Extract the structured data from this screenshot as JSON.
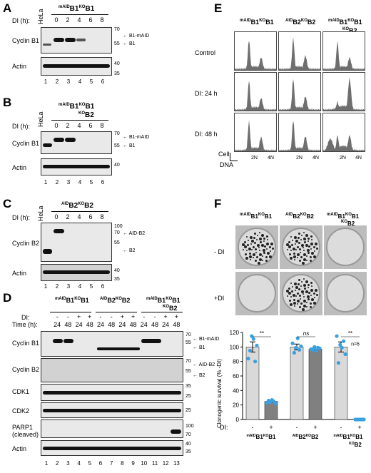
{
  "panels": {
    "A": {
      "letter": "A",
      "hela": "HeLa",
      "title_sup": "mAID",
      "title_main": "B1",
      "title_sup2": "KO",
      "title_main2": "B1",
      "di_label": "DI (h):",
      "di_values": [
        "0",
        "2",
        "4",
        "6",
        "8"
      ],
      "row1": "Cyclin B1",
      "row2": "Actin",
      "m1": "70",
      "m2": "55",
      "m3": "40",
      "m4": "35",
      "arrow1": "B1-mAID",
      "arrow2": "B1",
      "lanes": [
        "1",
        "2",
        "3",
        "4",
        "5",
        "6"
      ]
    },
    "B": {
      "letter": "B",
      "hela": "HeLa",
      "title_a": "mAID",
      "title_b": "B1",
      "title_c": "KO",
      "title_d": "B1",
      "title_e": "KO",
      "title_f": "B2",
      "di_label": "DI (h):",
      "di_values": [
        "0",
        "2",
        "4",
        "6",
        "8"
      ],
      "row1": "Cyclin B1",
      "row2": "Actin",
      "m1": "70",
      "m2": "55",
      "m3": "40",
      "arrow1": "B1-mAID",
      "arrow2": "B1",
      "lanes": [
        "1",
        "2",
        "3",
        "4",
        "5",
        "6"
      ]
    },
    "C": {
      "letter": "C",
      "hela": "HeLa",
      "title_a": "AID",
      "title_b": "B2",
      "title_c": "KO",
      "title_d": "B2",
      "di_label": "DI (h):",
      "di_values": [
        "0",
        "2",
        "4",
        "6",
        "8"
      ],
      "row1": "Cyclin B2",
      "row2": "Actin",
      "m1": "100",
      "m2": "70",
      "m3": "55",
      "m4": "40",
      "m5": "35",
      "arrow1": "AID-B2",
      "arrow2": "B2",
      "lanes": [
        "1",
        "2",
        "3",
        "4",
        "5",
        "6"
      ]
    },
    "D": {
      "letter": "D",
      "groups": [
        {
          "a": "mAID",
          "b": "B1",
          "c": "KO",
          "d": "B1"
        },
        {
          "a": "AID",
          "b": "B2",
          "c": "KO",
          "d": "B2"
        },
        {
          "a": "mAID",
          "b": "B1",
          "c": "KO",
          "d": "B1",
          "e": "KO",
          "f": "B2"
        }
      ],
      "di_label": "DI:",
      "time_label": "Time (h):",
      "di_signs": [
        "-",
        "-",
        "+",
        "+"
      ],
      "times": [
        "24",
        "48",
        "24",
        "48"
      ],
      "rows": [
        "Cyclin B1",
        "Cyclin B2",
        "CDK1",
        "CDK2",
        "PARP1",
        "(cleaved)",
        "Actin"
      ],
      "arrows": [
        "B1-mAID",
        "B1",
        "AID-B2",
        "B2"
      ],
      "markers": {
        "cb1": [
          "70",
          "55"
        ],
        "cb2": [
          "70",
          "55"
        ],
        "cdk1": [
          "35",
          "25"
        ],
        "cdk2": [
          "25"
        ],
        "parp": [
          "100",
          "70"
        ],
        "actin": [
          "40",
          "35"
        ]
      },
      "lanes": [
        "1",
        "2",
        "3",
        "4",
        "5",
        "6",
        "7",
        "8",
        "9",
        "10",
        "11",
        "12",
        "13"
      ]
    },
    "E": {
      "letter": "E",
      "cols": [
        {
          "a": "mAID",
          "b": "B1",
          "c": "KO",
          "d": "B1"
        },
        {
          "a": "AID",
          "b": "B2",
          "c": "KO",
          "d": "B2"
        },
        {
          "a": "mAID",
          "b": "B1",
          "c": "KO",
          "d": "B1",
          "e": "KO",
          "f": "B2"
        }
      ],
      "rows": [
        "Control",
        "DI: 24 h",
        "DI: 48 h"
      ],
      "x_ticks": [
        "2N",
        "4N"
      ],
      "y_axis": "Cell",
      "x_axis": "DNA"
    },
    "F": {
      "letter": "F",
      "cols": [
        {
          "a": "mAID",
          "b": "B1",
          "c": "KO",
          "d": "B1"
        },
        {
          "a": "AID",
          "b": "B2",
          "c": "KO",
          "d": "B2"
        },
        {
          "a": "mAID",
          "b": "B1",
          "c": "KO",
          "d": "B1",
          "e": "KO",
          "f": "B2"
        }
      ],
      "rows": [
        "- DI",
        "+DI"
      ],
      "sig": [
        "**",
        "ns",
        "**"
      ],
      "n_label": "n=6",
      "di_label": "DI:",
      "signs": [
        "-",
        "+",
        "-",
        "+",
        "-",
        "+"
      ],
      "xgroups": [
        {
          "a": "mAID",
          "b": "B1",
          "c": "KO",
          "d": "B1"
        },
        {
          "a": "AID",
          "b": "B2",
          "c": "KO",
          "d": "B2"
        },
        {
          "a": "mAID",
          "b": "B1",
          "c": "KO",
          "d": "B1",
          "e": "KO",
          "f": "B2"
        }
      ]
    }
  },
  "chart_data": {
    "type": "bar",
    "ylabel": "Clonogenic survival (% -DI)",
    "ylim": [
      0,
      120
    ],
    "yticks": [
      "0",
      "20",
      "40",
      "60",
      "80",
      "100",
      "120"
    ],
    "categories": [
      "-",
      "+",
      "-",
      "+",
      "-",
      "+"
    ],
    "values": [
      100,
      25,
      100,
      97,
      100,
      0
    ],
    "errors": [
      7,
      1.5,
      4,
      2,
      7,
      0
    ],
    "points": [
      [
        84,
        95,
        115,
        111,
        80,
        102
      ],
      [
        23,
        26,
        24,
        27,
        25,
        22
      ],
      [
        105,
        92,
        99,
        112,
        96,
        101
      ],
      [
        97,
        96,
        100,
        95,
        99,
        98
      ],
      [
        115,
        78,
        103,
        99,
        108,
        90
      ],
      [
        0,
        0,
        0,
        0,
        0,
        0
      ]
    ],
    "bar_colors": [
      "#d9d9d9",
      "#808080",
      "#d9d9d9",
      "#808080",
      "#d9d9d9",
      "#808080"
    ],
    "point_color": "#3aa0e0"
  }
}
